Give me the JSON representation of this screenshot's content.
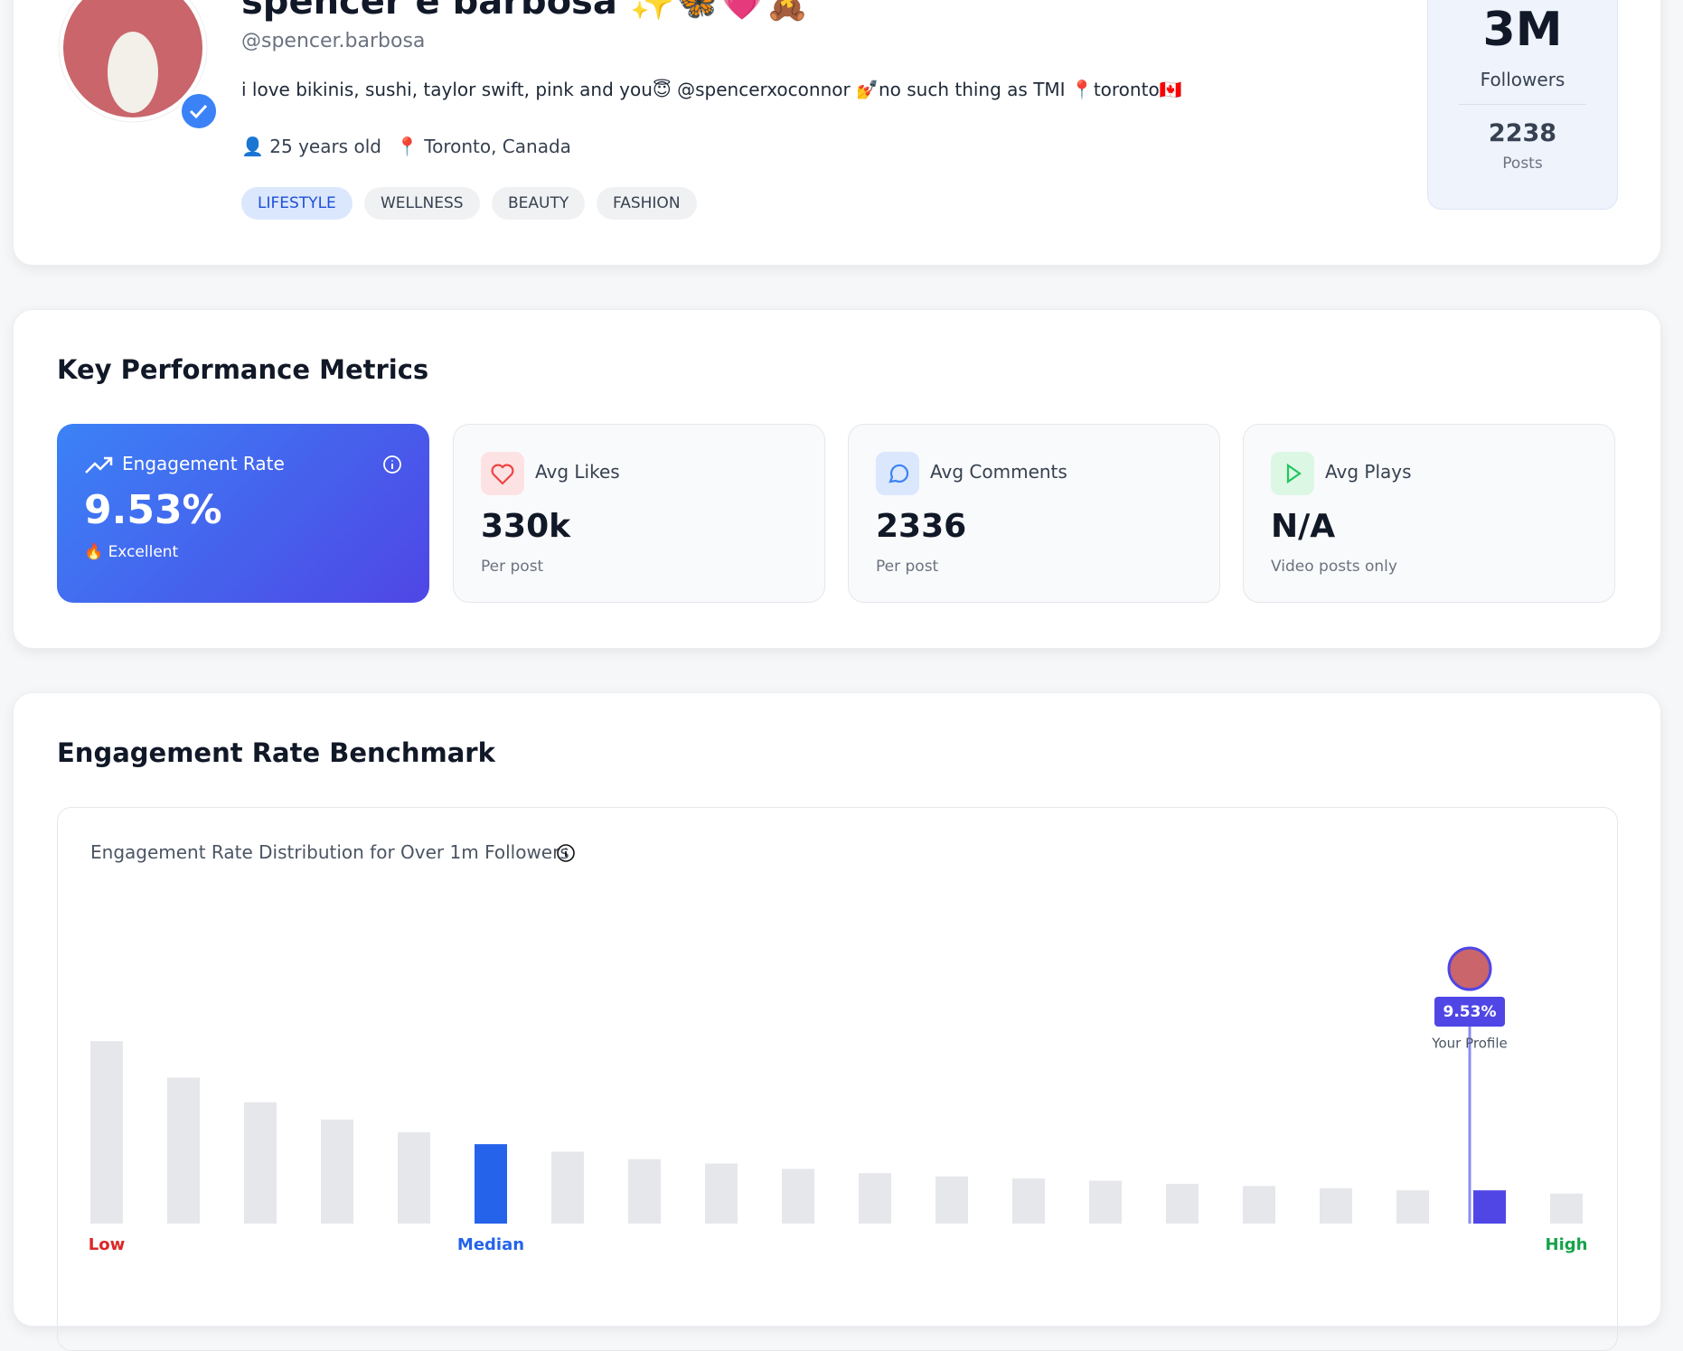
{
  "profile": {
    "name": "spencer e barbosa ✨🦋💗🧸",
    "handle": "@spencer.barbosa",
    "bio": "i love bikinis, sushi, taylor swift, pink and you😇 @spencerxoconnor 💅no such thing as TMI 📍toronto🇨🇦",
    "age": "👤 25 years old",
    "location": "📍 Toronto, Canada",
    "tags": [
      "LIFESTYLE",
      "WELLNESS",
      "BEAUTY",
      "FASHION"
    ],
    "followers": "3M",
    "followers_label": "Followers",
    "posts": "2238",
    "posts_label": "Posts"
  },
  "metrics": {
    "title": "Key Performance Metrics",
    "items": [
      {
        "label": "Engagement Rate",
        "value": "9.53%",
        "note": "🔥 Excellent"
      },
      {
        "label": "Avg Likes",
        "value": "330k",
        "note": "Per post"
      },
      {
        "label": "Avg Comments",
        "value": "2336",
        "note": "Per post"
      },
      {
        "label": "Avg Plays",
        "value": "N/A",
        "note": "Video posts only"
      }
    ]
  },
  "benchmark": {
    "title": "Engagement Rate Benchmark"
  },
  "chart_data": {
    "type": "bar",
    "title": "Engagement Rate Distribution for Over 1m Followers",
    "categories": [
      "Low",
      null,
      null,
      null,
      null,
      "Median",
      null,
      null,
      null,
      null,
      null,
      null,
      null,
      null,
      null,
      null,
      null,
      null,
      null,
      "High"
    ],
    "values": [
      170,
      136,
      113,
      97,
      85,
      74,
      67,
      60,
      56,
      51,
      47,
      44,
      42,
      40,
      37,
      35,
      33,
      31,
      31,
      28
    ],
    "color": "#e5e7eb",
    "median_color": "#2563eb",
    "median_index": 5,
    "marker": {
      "index": 18,
      "color": "#4f46e5",
      "value_label": "9.53%",
      "label": "Your Profile"
    }
  }
}
